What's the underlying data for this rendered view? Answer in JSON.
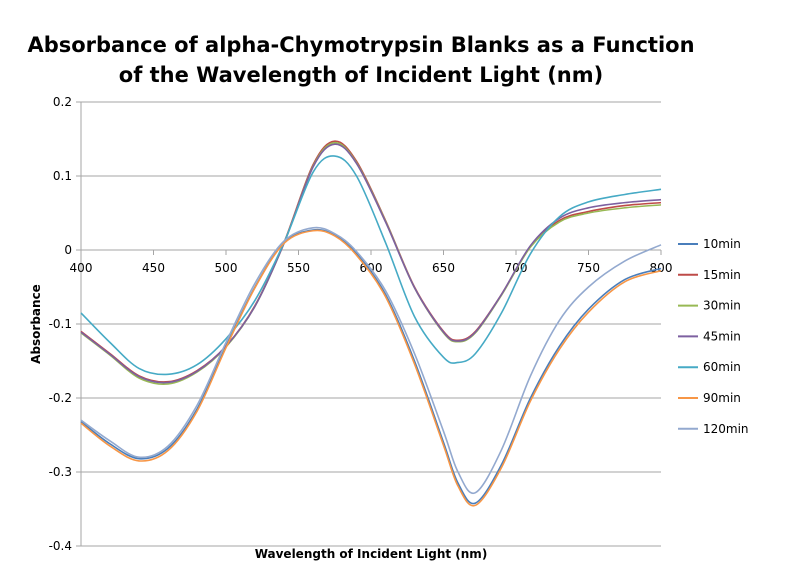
{
  "chart_data": {
    "type": "line",
    "title": "Absorbance of alpha-Chymotrypsin Blanks as a Function of the Wavelength of Incident Light (nm)",
    "title_lines": [
      "Absorbance of alpha-Chymotrypsin Blanks as a Function",
      "of the Wavelength of Incident Light (nm)"
    ],
    "xlabel": "Wavelength of Incident Light (nm)",
    "ylabel": "Absorbance",
    "xlim": [
      400,
      800
    ],
    "ylim": [
      -0.4,
      0.2
    ],
    "xticks": [
      400,
      450,
      500,
      550,
      600,
      650,
      700,
      750,
      800
    ],
    "yticks": [
      0.2,
      0.1,
      0,
      -0.1,
      -0.2,
      -0.3,
      -0.4
    ],
    "grid": "horizontal",
    "legend": "right",
    "x": [
      400,
      420,
      440,
      460,
      480,
      500,
      520,
      540,
      560,
      575,
      590,
      610,
      630,
      650,
      660,
      672,
      690,
      710,
      730,
      750,
      775,
      800
    ],
    "series": [
      {
        "name": "10min",
        "color": "#4A7EBB",
        "values": [
          -0.232,
          -0.262,
          -0.282,
          -0.268,
          -0.215,
          -0.13,
          -0.05,
          0.01,
          0.027,
          0.02,
          -0.005,
          -0.06,
          -0.15,
          -0.26,
          -0.315,
          -0.342,
          -0.29,
          -0.2,
          -0.13,
          -0.08,
          -0.04,
          -0.025
        ]
      },
      {
        "name": "15min",
        "color": "#BE4B48",
        "values": [
          -0.11,
          -0.14,
          -0.17,
          -0.178,
          -0.163,
          -0.13,
          -0.075,
          0.01,
          0.115,
          0.147,
          0.12,
          0.04,
          -0.05,
          -0.11,
          -0.122,
          -0.11,
          -0.06,
          0.005,
          0.04,
          0.052,
          0.06,
          0.064
        ]
      },
      {
        "name": "30min",
        "color": "#98B954",
        "values": [
          -0.112,
          -0.142,
          -0.173,
          -0.181,
          -0.165,
          -0.131,
          -0.076,
          0.009,
          0.113,
          0.145,
          0.118,
          0.039,
          -0.051,
          -0.112,
          -0.124,
          -0.112,
          -0.061,
          0.004,
          0.038,
          0.05,
          0.057,
          0.061
        ]
      },
      {
        "name": "45min",
        "color": "#7D60A0",
        "values": [
          -0.111,
          -0.141,
          -0.171,
          -0.179,
          -0.164,
          -0.13,
          -0.076,
          0.009,
          0.112,
          0.143,
          0.117,
          0.038,
          -0.051,
          -0.111,
          -0.123,
          -0.111,
          -0.06,
          0.006,
          0.043,
          0.057,
          0.064,
          0.068
        ]
      },
      {
        "name": "60min",
        "color": "#46AAC5",
        "values": [
          -0.085,
          -0.125,
          -0.16,
          -0.168,
          -0.155,
          -0.12,
          -0.068,
          0.01,
          0.105,
          0.127,
          0.1,
          0.01,
          -0.09,
          -0.145,
          -0.152,
          -0.14,
          -0.085,
          -0.005,
          0.045,
          0.065,
          0.075,
          0.082
        ]
      },
      {
        "name": "90min",
        "color": "#F79646",
        "values": [
          -0.234,
          -0.265,
          -0.285,
          -0.271,
          -0.218,
          -0.132,
          -0.051,
          0.009,
          0.026,
          0.019,
          -0.007,
          -0.063,
          -0.154,
          -0.264,
          -0.319,
          -0.345,
          -0.294,
          -0.204,
          -0.134,
          -0.084,
          -0.043,
          -0.028
        ]
      },
      {
        "name": "120min",
        "color": "#93A9CF",
        "values": [
          -0.23,
          -0.258,
          -0.28,
          -0.265,
          -0.21,
          -0.125,
          -0.045,
          0.012,
          0.03,
          0.022,
          -0.002,
          -0.055,
          -0.14,
          -0.245,
          -0.3,
          -0.328,
          -0.27,
          -0.17,
          -0.095,
          -0.05,
          -0.015,
          0.007
        ]
      }
    ]
  }
}
